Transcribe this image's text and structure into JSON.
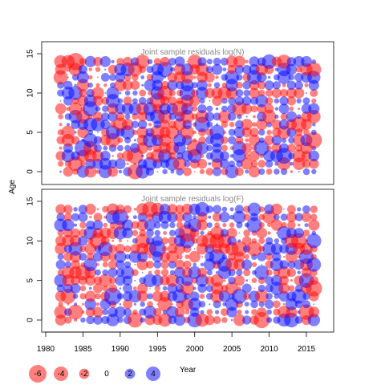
{
  "chart_data": {
    "type": "bubble-grid",
    "y_label": "Age",
    "x_label": "Year",
    "x_range": [
      1982,
      2016
    ],
    "y_range": [
      0,
      14
    ],
    "x_ticks": [
      1980,
      1985,
      1990,
      1995,
      2000,
      2005,
      2010,
      2015
    ],
    "y_ticks": [
      0,
      5,
      10,
      15
    ],
    "colors": {
      "positive": "#0000ff",
      "negative": "#ff0000"
    },
    "panels": [
      {
        "title": "Joint sample residuals log(N)",
        "seed": 17
      },
      {
        "title": "Joint sample residuals log(F)",
        "seed": 91
      }
    ],
    "legend": {
      "values": [
        -6,
        -4,
        -2,
        0,
        2,
        4
      ],
      "labels": [
        "-6",
        "-4",
        "-2",
        "0",
        "2",
        "4"
      ]
    }
  }
}
